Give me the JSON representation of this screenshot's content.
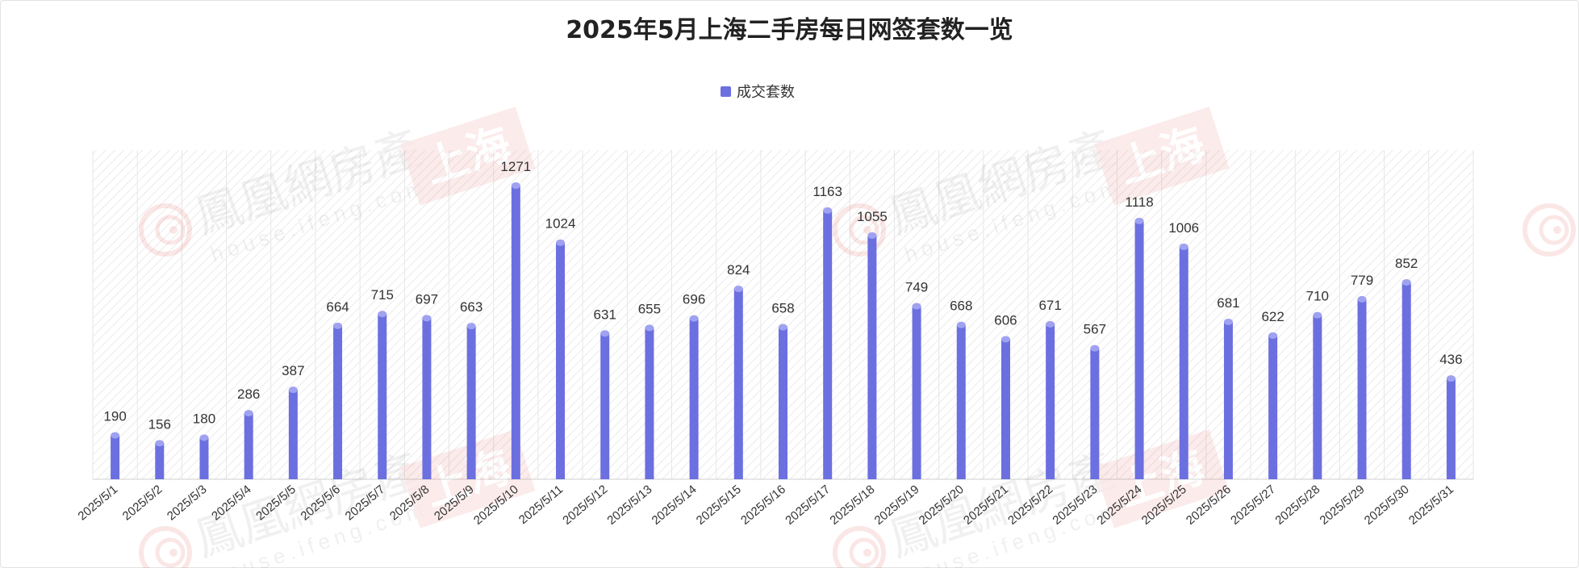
{
  "chart_data": {
    "type": "bar",
    "title": "2025年5月上海二手房每日网签套数一览",
    "legend": "成交套数",
    "legend_position": "top-center",
    "grid": false,
    "categories": [
      "2025/5/1",
      "2025/5/2",
      "2025/5/3",
      "2025/5/4",
      "2025/5/5",
      "2025/5/6",
      "2025/5/7",
      "2025/5/8",
      "2025/5/9",
      "2025/5/10",
      "2025/5/11",
      "2025/5/12",
      "2025/5/13",
      "2025/5/14",
      "2025/5/15",
      "2025/5/16",
      "2025/5/17",
      "2025/5/18",
      "2025/5/19",
      "2025/5/20",
      "2025/5/21",
      "2025/5/22",
      "2025/5/23",
      "2025/5/24",
      "2025/5/25",
      "2025/5/26",
      "2025/5/27",
      "2025/5/28",
      "2025/5/29",
      "2025/5/30",
      "2025/5/31"
    ],
    "series": [
      {
        "name": "成交套数",
        "values": [
          190,
          156,
          180,
          286,
          387,
          664,
          715,
          697,
          663,
          1271,
          1024,
          631,
          655,
          696,
          824,
          658,
          1163,
          1055,
          749,
          668,
          606,
          671,
          567,
          1118,
          1006,
          681,
          622,
          710,
          779,
          852,
          436
        ]
      }
    ],
    "ylim": [
      0,
      1300
    ],
    "xlabel": "",
    "ylabel": ""
  },
  "colors": {
    "bar": "#6b6fe0",
    "bar_cap": "#9fa2f0",
    "watermark_red": "#e23a3a"
  },
  "watermark": {
    "text_cn": "鳳凰網房產",
    "text_url": "house.ifeng.com",
    "badge": "上海",
    "icon": "ifeng-logo-icon"
  }
}
